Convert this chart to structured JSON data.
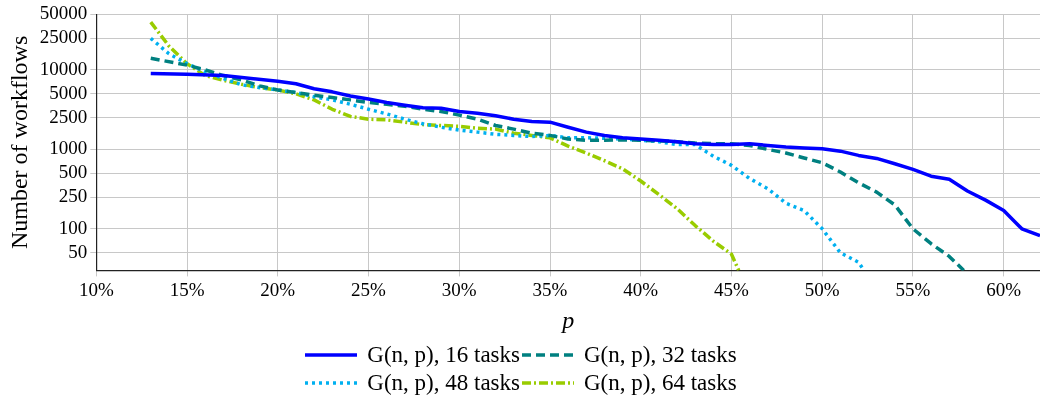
{
  "chart_data": {
    "type": "line",
    "xlabel": "p",
    "ylabel": "Number of workflows",
    "log": "y",
    "grid": true,
    "legend": "bottom",
    "xlim": [
      10,
      62
    ],
    "ylim": [
      30,
      50000
    ],
    "xticks": [
      {
        "value": 10,
        "label": "10%"
      },
      {
        "value": 15,
        "label": "15%"
      },
      {
        "value": 20,
        "label": "20%"
      },
      {
        "value": 25,
        "label": "25%"
      },
      {
        "value": 30,
        "label": "30%"
      },
      {
        "value": 35,
        "label": "35%"
      },
      {
        "value": 40,
        "label": "40%"
      },
      {
        "value": 45,
        "label": "45%"
      },
      {
        "value": 50,
        "label": "50%"
      },
      {
        "value": 55,
        "label": "55%"
      },
      {
        "value": 60,
        "label": "60%"
      }
    ],
    "yticks": [
      50,
      100,
      250,
      500,
      1000,
      2500,
      5000,
      10000,
      25000,
      50000
    ],
    "series": [
      {
        "name": "G(n, p), 16 tasks",
        "color": "#0000ff",
        "line_style": "solid",
        "x": [
          13,
          15,
          17,
          20,
          21,
          22,
          23,
          24,
          25,
          26,
          27,
          28,
          29,
          30,
          31,
          32,
          33,
          34,
          35,
          36,
          37,
          38,
          39,
          40,
          41,
          42,
          43,
          44,
          45,
          46,
          47,
          48,
          49,
          50,
          51,
          52,
          53,
          54,
          55,
          56,
          57,
          58,
          59,
          60,
          61,
          62
        ],
        "values": [
          9000,
          8800,
          8500,
          7200,
          6700,
          5800,
          5300,
          4700,
          4300,
          3900,
          3600,
          3350,
          3300,
          3000,
          2850,
          2650,
          2400,
          2250,
          2200,
          1900,
          1650,
          1500,
          1400,
          1350,
          1300,
          1250,
          1180,
          1150,
          1150,
          1180,
          1120,
          1070,
          1040,
          1020,
          950,
          840,
          770,
          660,
          560,
          460,
          420,
          300,
          230,
          170,
          100,
          82
        ]
      },
      {
        "name": "G(n, p), 32 tasks",
        "color": "#008080",
        "line_style": "dashed",
        "x": [
          13,
          15,
          16,
          17,
          18,
          19,
          20,
          21,
          22,
          23,
          24,
          25,
          26,
          27,
          28,
          29,
          30,
          31,
          32,
          33,
          34,
          35,
          36,
          37,
          38,
          39,
          40,
          41,
          42,
          43,
          44,
          45,
          46,
          47,
          48,
          49,
          50,
          51,
          52,
          53,
          54,
          55,
          56,
          57,
          57.8
        ],
        "values": [
          14000,
          11500,
          10000,
          8500,
          7500,
          6300,
          5600,
          5200,
          4800,
          4500,
          4200,
          3900,
          3700,
          3500,
          3200,
          3000,
          2700,
          2400,
          2000,
          1800,
          1600,
          1500,
          1350,
          1300,
          1300,
          1320,
          1300,
          1280,
          1250,
          1200,
          1180,
          1180,
          1120,
          1000,
          900,
          780,
          680,
          520,
          380,
          290,
          200,
          100,
          65,
          45,
          30
        ]
      },
      {
        "name": "G(n, p), 48 tasks",
        "color": "#00b0f0",
        "line_style": "dotted",
        "x": [
          13,
          14,
          15,
          16,
          17,
          18,
          19,
          20,
          21,
          22,
          23,
          24,
          25,
          26,
          27,
          28,
          29,
          30,
          31,
          32,
          33,
          34,
          35,
          36,
          37,
          38,
          39,
          40,
          41,
          42,
          43,
          44,
          45,
          46,
          47,
          48,
          49,
          50,
          51,
          52,
          52.3
        ],
        "values": [
          25000,
          16000,
          12000,
          9500,
          7800,
          6500,
          6000,
          5600,
          5200,
          4600,
          4200,
          3700,
          3200,
          2800,
          2400,
          2100,
          1900,
          1750,
          1650,
          1550,
          1500,
          1450,
          1500,
          1400,
          1400,
          1380,
          1350,
          1300,
          1250,
          1150,
          1150,
          820,
          630,
          430,
          320,
          210,
          170,
          100,
          50,
          38,
          30
        ]
      },
      {
        "name": "G(n, p), 64 tasks",
        "color": "#99cc00",
        "line_style": "dashdot",
        "x": [
          13,
          14,
          15,
          16,
          17,
          18,
          19,
          20,
          21,
          22,
          23,
          24,
          25,
          26,
          27,
          28,
          29,
          30,
          31,
          32,
          33,
          34,
          35,
          36,
          37,
          38,
          39,
          40,
          41,
          42,
          43,
          44,
          45,
          45.4
        ],
        "values": [
          40000,
          20000,
          12000,
          8500,
          7400,
          6600,
          6000,
          5600,
          5000,
          4200,
          3200,
          2600,
          2400,
          2350,
          2200,
          2050,
          2000,
          1950,
          1850,
          1800,
          1600,
          1500,
          1400,
          1100,
          900,
          720,
          570,
          400,
          270,
          180,
          110,
          70,
          48,
          30
        ]
      }
    ]
  }
}
